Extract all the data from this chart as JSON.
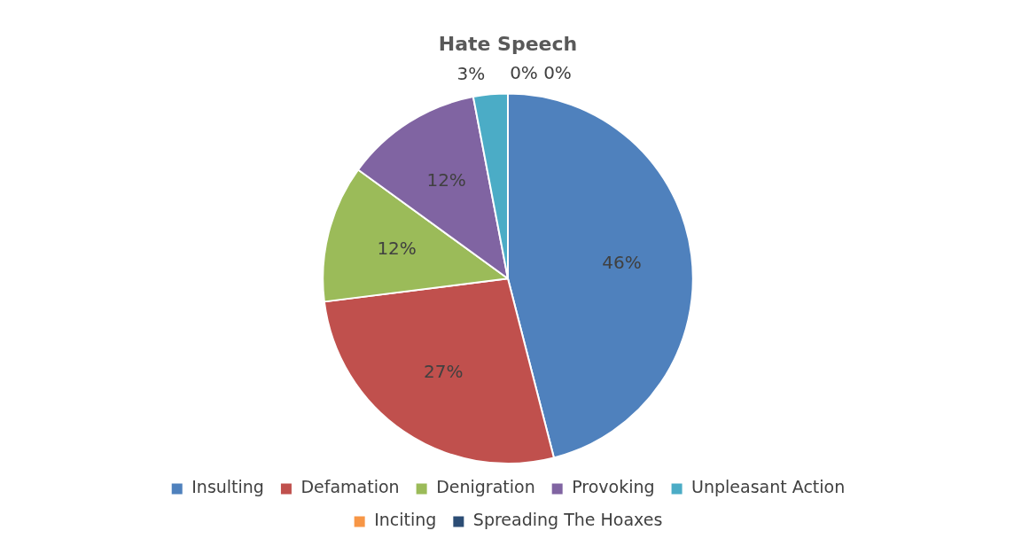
{
  "chart_data": {
    "type": "pie",
    "title": "Hate Speech",
    "categories": [
      "Insulting",
      "Defamation",
      "Denigration",
      "Provoking",
      "Unpleasant Action",
      "Inciting",
      "Spreading The Hoaxes"
    ],
    "values": [
      46,
      27,
      12,
      12,
      3,
      0,
      0
    ],
    "colors": [
      "#4f81bd",
      "#c0504d",
      "#9bbb59",
      "#8064a2",
      "#4bacc6",
      "#f79646",
      "#2c4d75"
    ],
    "value_labels": [
      "46%",
      "27%",
      "12%",
      "12%",
      "3%",
      "0%",
      "0%"
    ],
    "legend": "bottom"
  }
}
